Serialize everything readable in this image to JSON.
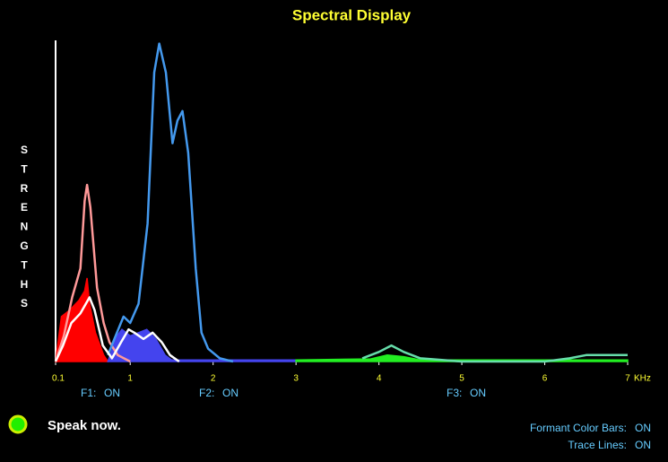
{
  "chart_data": {
    "type": "line",
    "title": "Spectral Display",
    "y_label": "STRENGTHS",
    "x_unit": "KHz",
    "xlim": [
      0.1,
      7
    ],
    "xticks": [
      0.1,
      1,
      2,
      3,
      4,
      5,
      6,
      7
    ],
    "ylim": [
      0,
      100
    ],
    "series": [
      {
        "color": "#ff0000",
        "fill": true,
        "x": [
          0.1,
          0.17,
          0.27,
          0.38,
          0.45,
          0.48,
          0.51,
          0.58,
          0.68,
          0.73
        ],
        "values": [
          0,
          14,
          16,
          19,
          22,
          26,
          18,
          9,
          2,
          0
        ]
      },
      {
        "color": "#4444ee",
        "fill": true,
        "x": [
          0.73,
          0.84,
          0.9,
          1.0,
          1.1,
          1.2,
          1.31,
          1.42,
          1.5,
          2.0,
          3.0
        ],
        "values": [
          0,
          8,
          10,
          8,
          9,
          10,
          7,
          2,
          0.5,
          0.5,
          0.5
        ]
      },
      {
        "color": "#22ee22",
        "fill": true,
        "x": [
          3.0,
          3.9,
          4.1,
          4.3,
          4.5,
          7
        ],
        "values": [
          0.5,
          0.8,
          2,
          1.5,
          0.5,
          0.5
        ]
      },
      {
        "color": "#ff9999",
        "fill": false,
        "x": [
          0.1,
          0.2,
          0.3,
          0.4,
          0.45,
          0.48,
          0.52,
          0.6,
          0.68,
          0.75,
          0.85,
          1.0
        ],
        "values": [
          0,
          8,
          20,
          29,
          50,
          55,
          48,
          23,
          12,
          6,
          2,
          0
        ]
      },
      {
        "color": "#4499ee",
        "fill": false,
        "x": [
          0.73,
          0.84,
          0.92,
          1.0,
          1.1,
          1.21,
          1.29,
          1.35,
          1.43,
          1.51,
          1.57,
          1.63,
          1.7,
          1.79,
          1.86,
          1.94,
          2.08,
          2.24
        ],
        "values": [
          2,
          9,
          14,
          12,
          18,
          43,
          90,
          99,
          90,
          68,
          75,
          78,
          65,
          29,
          9,
          4,
          1,
          0
        ]
      },
      {
        "color": "#ffffff",
        "fill": false,
        "x": [
          0.1,
          0.19,
          0.29,
          0.4,
          0.51,
          0.57,
          0.67,
          0.78,
          0.89,
          0.98,
          1.05,
          1.16,
          1.27,
          1.38,
          1.48,
          1.59
        ],
        "values": [
          0,
          5,
          12,
          15,
          20,
          16,
          5,
          1,
          6,
          10,
          9,
          7,
          9,
          6,
          2,
          0
        ]
      },
      {
        "color": "#66ddaa",
        "fill": false,
        "x": [
          3.8,
          4.0,
          4.15,
          4.3,
          4.5,
          5,
          6,
          6.3,
          6.5,
          7
        ],
        "values": [
          1,
          3,
          5,
          3,
          1,
          0,
          0,
          1,
          2,
          2
        ]
      }
    ]
  },
  "formants": [
    {
      "label": "F1:",
      "state": "ON"
    },
    {
      "label": "F2:",
      "state": "ON"
    },
    {
      "label": "F3:",
      "state": "ON"
    }
  ],
  "status": "Speak now.",
  "options": [
    {
      "label": "Formant Color Bars:",
      "state": "ON"
    },
    {
      "label": "Trace Lines:",
      "state": "ON"
    }
  ]
}
